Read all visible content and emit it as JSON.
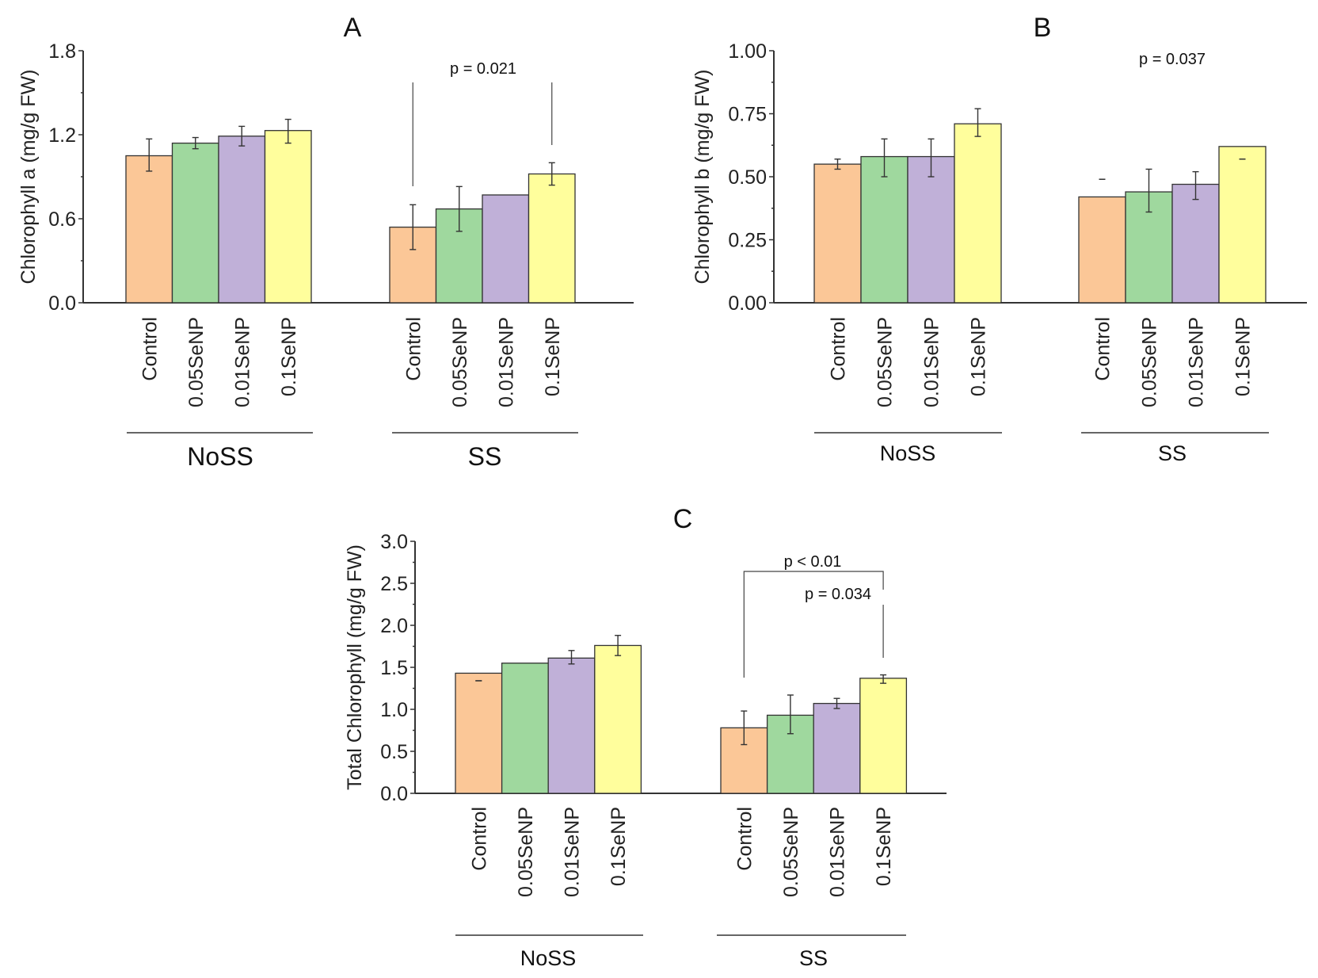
{
  "figure": {
    "colors": {
      "Control": "#FBC797",
      "0.05SeNP": "#9FD89E",
      "0.01SeNP": "#C0B0D8",
      "0.1SeNP": "#FFFE9C"
    }
  },
  "chart_data": [
    {
      "type": "bar",
      "panel": "A",
      "title": "A",
      "xlabel": "",
      "ylabel": "Chlorophyll a (mg/g FW)",
      "ylim": [
        0,
        1.8
      ],
      "yticks": [
        "0.0",
        "0.6",
        "1.2",
        "1.8"
      ],
      "ytick_values": [
        0,
        0.6,
        1.2,
        1.8
      ],
      "groups": [
        "NoSS",
        "SS"
      ],
      "categories": [
        "Control",
        "0.05SeNP",
        "0.01SeNP",
        "0.1SeNP"
      ],
      "series": [
        {
          "group": "NoSS",
          "values": [
            1.05,
            1.14,
            1.19,
            1.23
          ],
          "err_low": [
            0.94,
            1.1,
            1.12,
            1.14
          ],
          "err_high": [
            1.17,
            1.18,
            1.26,
            1.31
          ]
        },
        {
          "group": "SS",
          "values": [
            0.54,
            0.67,
            0.77,
            0.92
          ],
          "err_low": [
            0.38,
            0.51,
            null,
            0.84
          ],
          "err_high": [
            0.7,
            0.83,
            null,
            1.0
          ]
        }
      ],
      "annotations": [
        {
          "text": "p = 0.021",
          "group": "SS",
          "from": "Control",
          "to": "0.1SeNP",
          "style": "vertical-lines"
        }
      ],
      "grid": false,
      "legend": "none"
    },
    {
      "type": "bar",
      "panel": "B",
      "title": "B",
      "xlabel": "",
      "ylabel": "Chlorophyll b (mg/g FW)",
      "ylim": [
        0,
        1.0
      ],
      "yticks": [
        "0.00",
        "0.25",
        "0.50",
        "0.75",
        "1.00"
      ],
      "ytick_values": [
        0,
        0.25,
        0.5,
        0.75,
        1.0
      ],
      "groups": [
        "NoSS",
        "SS"
      ],
      "categories": [
        "Control",
        "0.05SeNP",
        "0.01SeNP",
        "0.1SeNP"
      ],
      "series": [
        {
          "group": "NoSS",
          "values": [
            0.55,
            0.58,
            0.58,
            0.71
          ],
          "err_low": [
            0.53,
            0.5,
            0.5,
            0.66
          ],
          "err_high": [
            0.57,
            0.65,
            0.65,
            0.77
          ]
        },
        {
          "group": "SS",
          "values": [
            0.42,
            0.44,
            0.47,
            0.62
          ],
          "err_low": [
            0.49,
            0.36,
            0.41,
            0.57
          ],
          "err_high": [
            0.49,
            0.53,
            0.52,
            0.57
          ]
        }
      ],
      "annotations": [
        {
          "text": "p = 0.037",
          "group": "SS",
          "style": "text-only"
        }
      ],
      "grid": false,
      "legend": "none"
    },
    {
      "type": "bar",
      "panel": "C",
      "title": "C",
      "xlabel": "",
      "ylabel": "Total Chlorophyll  (mg/g FW)",
      "ylim": [
        0,
        3.0
      ],
      "yticks": [
        "0.0",
        "0.5",
        "1.0",
        "1.5",
        "2.0",
        "2.5",
        "3.0"
      ],
      "ytick_values": [
        0,
        0.5,
        1.0,
        1.5,
        2.0,
        2.5,
        3.0
      ],
      "groups": [
        "NoSS",
        "SS"
      ],
      "categories": [
        "Control",
        "0.05SeNP",
        "0.01SeNP",
        "0.1SeNP"
      ],
      "series": [
        {
          "group": "NoSS",
          "values": [
            1.43,
            1.55,
            1.61,
            1.76
          ],
          "err_low": [
            1.34,
            null,
            1.54,
            1.64
          ],
          "err_high": [
            1.34,
            null,
            1.7,
            1.88
          ]
        },
        {
          "group": "SS",
          "values": [
            0.78,
            0.93,
            1.07,
            1.37
          ],
          "err_low": [
            0.58,
            0.71,
            1.01,
            1.31
          ],
          "err_high": [
            0.98,
            1.17,
            1.13,
            1.41
          ]
        }
      ],
      "annotations": [
        {
          "text": "p < 0.01",
          "group": "SS",
          "from": "Control",
          "to": "0.1SeNP",
          "style": "bracket"
        },
        {
          "text": "p = 0.034",
          "group": "SS",
          "to": "0.1SeNP",
          "style": "vertical-line"
        }
      ],
      "grid": false,
      "legend": "none"
    }
  ]
}
